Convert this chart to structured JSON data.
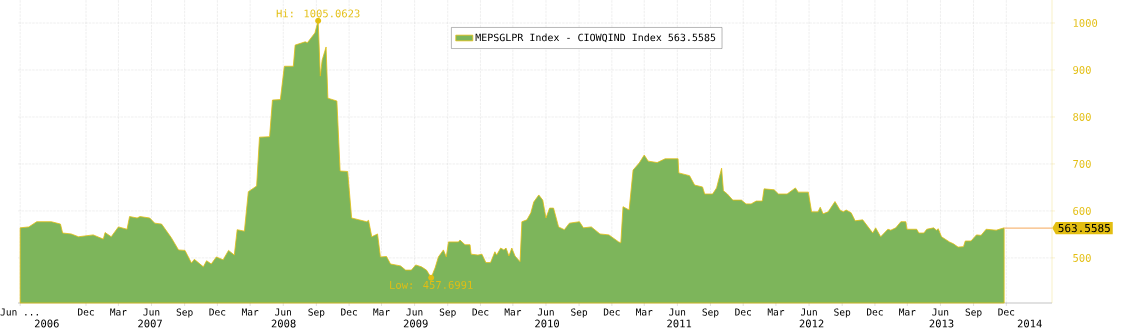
{
  "chart_data": {
    "type": "area",
    "x": [
      "2006-06-01",
      "2006-06-25",
      "2006-07-17",
      "2006-08-27",
      "2006-09-21",
      "2006-09-27",
      "2006-10-21",
      "2006-11-10",
      "2006-12-21",
      "2007-01-18",
      "2007-01-23",
      "2007-02-09",
      "2007-03-01",
      "2007-03-25",
      "2007-04-01",
      "2007-04-22",
      "2007-04-30",
      "2007-05-27",
      "2007-06-10",
      "2007-06-29",
      "2007-07-26",
      "2007-08-15",
      "2007-09-02",
      "2007-09-20",
      "2007-09-28",
      "2007-10-23",
      "2007-11-01",
      "2007-11-14",
      "2007-11-28",
      "2007-12-17",
      "2008-01-01",
      "2008-01-17",
      "2008-01-25",
      "2008-02-14",
      "2008-02-25",
      "2008-03-19",
      "2008-03-27",
      "2008-04-24",
      "2008-05-02",
      "2008-05-24",
      "2008-06-04",
      "2008-06-29",
      "2008-07-04",
      "2008-08-01",
      "2008-08-07",
      "2008-08-28",
      "2008-09-06",
      "2008-09-12",
      "2008-09-17",
      "2008-09-28",
      "2008-10-03",
      "2008-10-28",
      "2008-11-06",
      "2008-11-27",
      "2008-12-08",
      "2009-01-19",
      "2009-01-24",
      "2009-02-02",
      "2009-02-18",
      "2009-02-26",
      "2009-03-15",
      "2009-03-26",
      "2009-04-23",
      "2009-05-07",
      "2009-05-23",
      "2009-06-04",
      "2009-06-20",
      "2009-07-04",
      "2009-07-17",
      "2009-07-28",
      "2009-08-06",
      "2009-08-20",
      "2009-08-28",
      "2009-09-03",
      "2009-10-01",
      "2009-10-05",
      "2009-10-19",
      "2009-11-02",
      "2009-11-05",
      "2009-11-24",
      "2009-12-05",
      "2009-12-16",
      "2009-12-29",
      "2010-01-10",
      "2010-01-15",
      "2010-01-26",
      "2010-02-04",
      "2010-02-10",
      "2010-02-18",
      "2010-02-26",
      "2010-03-07",
      "2010-03-21",
      "2010-03-26",
      "2010-04-09",
      "2010-04-20",
      "2010-04-28",
      "2010-05-12",
      "2010-05-23",
      "2010-06-01",
      "2010-06-11",
      "2010-06-22",
      "2010-07-06",
      "2010-07-22",
      "2010-08-05",
      "2010-09-02",
      "2010-09-13",
      "2010-10-05",
      "2010-10-29",
      "2010-11-23",
      "2010-12-20",
      "2010-12-26",
      "2011-01-01",
      "2011-01-18",
      "2011-01-29",
      "2011-02-15",
      "2011-03-01",
      "2011-03-12",
      "2011-04-06",
      "2011-04-28",
      "2011-06-03",
      "2011-06-05",
      "2011-07-05",
      "2011-07-19",
      "2011-08-10",
      "2011-08-16",
      "2011-09-07",
      "2011-09-18",
      "2011-10-02",
      "2011-10-07",
      "2011-10-18",
      "2011-11-02",
      "2011-11-26",
      "2011-12-09",
      "2011-12-23",
      "2012-01-06",
      "2012-01-23",
      "2012-01-28",
      "2012-02-25",
      "2012-03-08",
      "2012-04-01",
      "2012-04-24",
      "2012-05-02",
      "2012-05-30",
      "2012-06-08",
      "2012-06-26",
      "2012-07-02",
      "2012-07-10",
      "2012-07-24",
      "2012-08-12",
      "2012-08-26",
      "2012-09-04",
      "2012-09-12",
      "2012-09-26",
      "2012-10-07",
      "2012-10-28",
      "2012-11-25",
      "2012-12-03",
      "2012-12-17",
      "2013-01-06",
      "2013-01-14",
      "2013-01-28",
      "2013-02-11",
      "2013-02-25",
      "2013-02-28",
      "2013-03-27",
      "2013-04-02",
      "2013-04-16",
      "2013-04-24",
      "2013-05-13",
      "2013-05-21",
      "2013-05-26",
      "2013-06-04",
      "2013-06-26",
      "2013-07-07",
      "2013-07-20",
      "2013-08-04",
      "2013-08-09",
      "2013-08-25",
      "2013-09-09",
      "2013-09-22",
      "2013-10-06",
      "2013-11-03",
      "2013-11-25"
    ],
    "series": [
      {
        "name": "MEPSGLPR Index - CIOWQIND Index 563.5585",
        "color": "#7db55b",
        "values": [
          564,
          566,
          577,
          577,
          572,
          553,
          551,
          545,
          549,
          540,
          554,
          545,
          566,
          561,
          588,
          585,
          588,
          585,
          574,
          572,
          543,
          517,
          516,
          489,
          497,
          481,
          494,
          487,
          502,
          496,
          516,
          506,
          560,
          557,
          641,
          653,
          757,
          758,
          836,
          837,
          908,
          908,
          953,
          960,
          958,
          979,
          1005,
          887,
          921,
          949,
          840,
          834,
          685,
          684,
          585,
          577,
          580,
          545,
          551,
          502,
          503,
          487,
          483,
          474,
          474,
          485,
          481,
          474,
          458,
          479,
          502,
          517,
          502,
          534,
          534,
          538,
          528,
          528,
          508,
          506,
          508,
          490,
          490,
          513,
          506,
          521,
          517,
          521,
          504,
          521,
          504,
          492,
          577,
          581,
          596,
          619,
          634,
          623,
          585,
          606,
          606,
          566,
          560,
          574,
          577,
          564,
          566,
          551,
          549,
          534,
          532,
          609,
          602,
          687,
          702,
          719,
          706,
          703,
          711,
          711,
          681,
          675,
          655,
          651,
          636,
          636,
          649,
          691,
          643,
          636,
          623,
          623,
          615,
          615,
          621,
          621,
          647,
          645,
          636,
          636,
          649,
          640,
          640,
          598,
          598,
          608,
          594,
          598,
          620,
          602,
          598,
          602,
          596,
          579,
          581,
          553,
          564,
          545,
          561,
          559,
          564,
          577,
          577,
          561,
          561,
          553,
          553,
          561,
          564,
          559,
          562,
          545,
          534,
          530,
          523,
          524,
          536,
          536,
          549,
          548,
          561,
          559,
          564
        ]
      }
    ],
    "xlim": [
      "2006-05-26",
      "2014-04-07"
    ],
    "xticks": [
      {
        "value": "2006-06-01",
        "label": "Jun ..."
      },
      {
        "value": "2006-12-01",
        "label": "Dec"
      },
      {
        "value": "2007-03-01",
        "label": "Mar"
      },
      {
        "value": "2007-06-01",
        "label": "Jun"
      },
      {
        "value": "2007-09-01",
        "label": "Sep"
      },
      {
        "value": "2007-12-01",
        "label": "Dec"
      },
      {
        "value": "2008-03-01",
        "label": "Mar"
      },
      {
        "value": "2008-06-01",
        "label": "Jun"
      },
      {
        "value": "2008-09-01",
        "label": "Sep"
      },
      {
        "value": "2008-12-01",
        "label": "Dec"
      },
      {
        "value": "2009-03-01",
        "label": "Mar"
      },
      {
        "value": "2009-06-01",
        "label": "Jun"
      },
      {
        "value": "2009-09-01",
        "label": "Sep"
      },
      {
        "value": "2009-12-01",
        "label": "Dec"
      },
      {
        "value": "2010-03-01",
        "label": "Mar"
      },
      {
        "value": "2010-06-01",
        "label": "Jun"
      },
      {
        "value": "2010-09-01",
        "label": "Sep"
      },
      {
        "value": "2010-12-01",
        "label": "Dec"
      },
      {
        "value": "2011-03-01",
        "label": "Mar"
      },
      {
        "value": "2011-06-01",
        "label": "Jun"
      },
      {
        "value": "2011-09-01",
        "label": "Sep"
      },
      {
        "value": "2011-12-01",
        "label": "Dec"
      },
      {
        "value": "2012-03-01",
        "label": "Mar"
      },
      {
        "value": "2012-06-01",
        "label": "Jun"
      },
      {
        "value": "2012-09-01",
        "label": "Sep"
      },
      {
        "value": "2012-12-01",
        "label": "Dec"
      },
      {
        "value": "2013-03-01",
        "label": "Mar"
      },
      {
        "value": "2013-06-01",
        "label": "Jun"
      },
      {
        "value": "2013-09-01",
        "label": "Sep"
      },
      {
        "value": "2013-12-01",
        "label": "Dec"
      }
    ],
    "x2lim": [
      "2006-05-26",
      "2014-04-07"
    ],
    "x2ticks": [
      {
        "value": "2006-08-14",
        "label": "2006"
      },
      {
        "value": "2007-05-28",
        "label": "2007"
      },
      {
        "value": "2008-06-02",
        "label": "2008"
      },
      {
        "value": "2009-06-04",
        "label": "2009"
      },
      {
        "value": "2010-06-04",
        "label": "2010"
      },
      {
        "value": "2011-06-06",
        "label": "2011"
      },
      {
        "value": "2012-06-08",
        "label": "2012"
      },
      {
        "value": "2013-06-04",
        "label": "2013"
      },
      {
        "value": "2014-02-04",
        "label": "2014"
      }
    ],
    "ylim": [
      404,
      1049
    ],
    "yticks": [
      500,
      600,
      700,
      800,
      900,
      1000
    ],
    "grid": true,
    "legend": "top",
    "annotations": [
      {
        "text": "Hi: 1005.0623",
        "x": "2008-09-06",
        "y": 1005.0623
      },
      {
        "text": "Low: 457.6991",
        "x": "2009-07-17",
        "y": 457.6991
      }
    ],
    "ref_lines": [
      {
        "axis": "y",
        "value": 563.5585,
        "label": "563.5585",
        "color": "#f7b97b"
      }
    ]
  }
}
